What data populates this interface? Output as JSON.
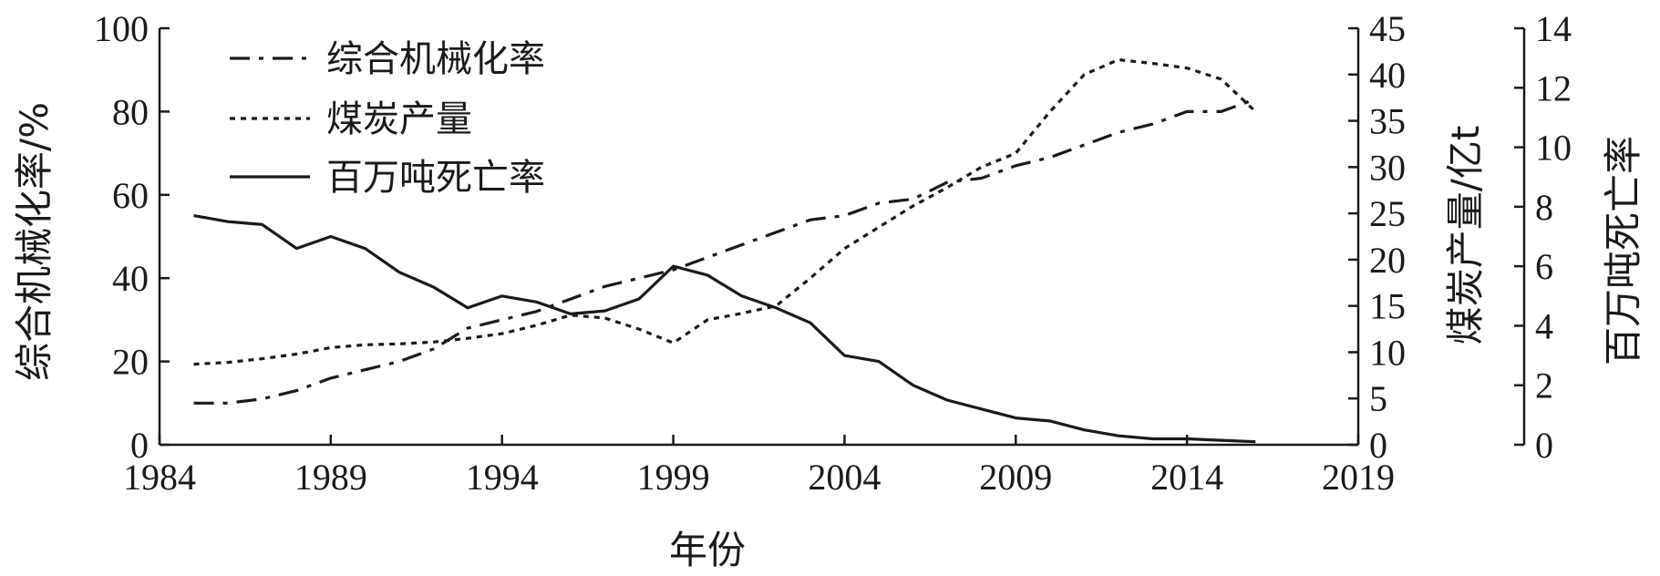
{
  "chart_data": {
    "type": "line",
    "xlabel": "年份",
    "x_ticks": [
      "1984",
      "1989",
      "1994",
      "1999",
      "2004",
      "2009",
      "2014",
      "2019"
    ],
    "xlim": [
      1984,
      2019
    ],
    "axes": {
      "left": {
        "label": "综合机械化率/%",
        "range": [
          0,
          100
        ],
        "ticks": [
          "0",
          "20",
          "40",
          "60",
          "80",
          "100"
        ]
      },
      "right1": {
        "label": "煤炭产量/亿t",
        "range": [
          0,
          45
        ],
        "ticks": [
          "0",
          "5",
          "10",
          "15",
          "20",
          "25",
          "30",
          "35",
          "40",
          "45"
        ]
      },
      "right2": {
        "label": "百万吨死亡率",
        "range": [
          0,
          14
        ],
        "ticks": [
          "0",
          "2",
          "4",
          "6",
          "8",
          "10",
          "12",
          "14"
        ]
      }
    },
    "legend": {
      "placement": "top-left"
    },
    "series": [
      {
        "name": "综合机械化率",
        "axis": "left",
        "dash": "dashdot",
        "x": [
          1985,
          1986,
          1987,
          1988,
          1989,
          1990,
          1991,
          1992,
          1993,
          1994,
          1995,
          1996,
          1997,
          1998,
          1999,
          2000,
          2001,
          2002,
          2003,
          2004,
          2005,
          2006,
          2007,
          2008,
          2009,
          2010,
          2011,
          2012,
          2013,
          2014,
          2015,
          2016
        ],
        "values": [
          10,
          10,
          11,
          13,
          16,
          18,
          20,
          23,
          28,
          30,
          32,
          35,
          38,
          40,
          42,
          45,
          48,
          51,
          54,
          55,
          58,
          59,
          63,
          64,
          67,
          69,
          72,
          75,
          77,
          80,
          80,
          83
        ]
      },
      {
        "name": "煤炭产量",
        "axis": "right1",
        "dash": "dotted",
        "x": [
          1985,
          1986,
          1987,
          1988,
          1989,
          1990,
          1991,
          1992,
          1993,
          1994,
          1995,
          1996,
          1997,
          1998,
          1999,
          2000,
          2001,
          2002,
          2003,
          2004,
          2005,
          2006,
          2007,
          2008,
          2009,
          2010,
          2011,
          2012,
          2013,
          2014,
          2015,
          2016
        ],
        "values": [
          8.7,
          8.9,
          9.3,
          9.8,
          10.5,
          10.8,
          10.9,
          11.1,
          11.5,
          12.0,
          12.9,
          14.0,
          13.7,
          12.5,
          11.0,
          13.5,
          14.2,
          15.0,
          18.0,
          21.2,
          23.5,
          25.8,
          27.8,
          30.0,
          31.5,
          36.0,
          40.0,
          41.6,
          41.2,
          40.7,
          39.5,
          36.0
        ]
      },
      {
        "name": "百万吨死亡率",
        "axis": "right2",
        "dash": "solid",
        "x": [
          1985,
          1986,
          1987,
          1988,
          1989,
          1990,
          1991,
          1992,
          1993,
          1994,
          1995,
          1996,
          1997,
          1998,
          1999,
          2000,
          2001,
          2002,
          2003,
          2004,
          2005,
          2006,
          2007,
          2008,
          2009,
          2010,
          2011,
          2012,
          2013,
          2014,
          2015,
          2016
        ],
        "values": [
          7.7,
          7.5,
          7.4,
          6.6,
          7.0,
          6.6,
          5.8,
          5.3,
          4.6,
          5.0,
          4.8,
          4.4,
          4.5,
          4.9,
          6.0,
          5.7,
          5.0,
          4.6,
          4.1,
          3.0,
          2.8,
          2.0,
          1.5,
          1.2,
          0.9,
          0.8,
          0.5,
          0.3,
          0.2,
          0.2,
          0.15,
          0.1
        ]
      }
    ]
  }
}
